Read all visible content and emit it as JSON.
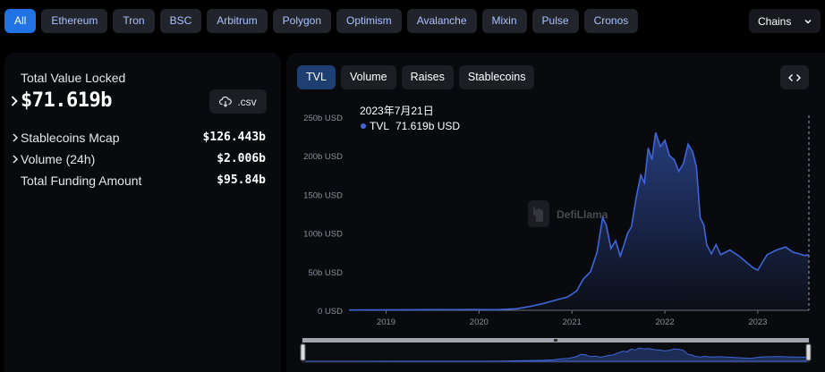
{
  "chains": {
    "items": [
      "All",
      "Ethereum",
      "Tron",
      "BSC",
      "Arbitrum",
      "Polygon",
      "Optimism",
      "Avalanche",
      "Mixin",
      "Pulse",
      "Cronos"
    ],
    "active_index": 0,
    "dropdown_label": "Chains"
  },
  "summary": {
    "tvl_label": "Total Value Locked",
    "tvl_value": "$71.619b",
    "csv_label": ".csv",
    "stats": [
      {
        "label": "Stablecoins Mcap",
        "value": "$126.443b",
        "expandable": true
      },
      {
        "label": "Volume (24h)",
        "value": "$2.006b",
        "expandable": true
      },
      {
        "label": "Total Funding Amount",
        "value": "$95.84b",
        "expandable": false
      }
    ]
  },
  "chart_tabs": {
    "items": [
      "TVL",
      "Volume",
      "Raises",
      "Stablecoins"
    ],
    "active_index": 0
  },
  "tooltip": {
    "date": "2023年7月21日",
    "series": "TVL",
    "value": "71.619b USD"
  },
  "watermark": "DefiLlama",
  "colors": {
    "accent": "#2172e5",
    "line": "#3e66d8",
    "chip_text": "#a9c1ff"
  },
  "icons": {
    "csv": "download-cloud-icon",
    "embed": "code-icon",
    "dropdown": "chevron-down-icon"
  },
  "chart_data": {
    "type": "area",
    "series": [
      {
        "name": "TVL"
      }
    ],
    "x_start": 2018.6,
    "x_end": 2023.55,
    "x_ticks": [
      2019,
      2020,
      2021,
      2022,
      2023
    ],
    "xticklabels": [
      "2019",
      "2020",
      "2021",
      "2022",
      "2023"
    ],
    "yticks": [
      0,
      50,
      100,
      150,
      200,
      250
    ],
    "yticklabels": [
      "0 USD",
      "50b USD",
      "100b USD",
      "150b USD",
      "200b USD",
      "250b USD"
    ],
    "ylim": [
      0,
      250
    ],
    "grid": false,
    "points": [
      [
        2018.6,
        0.3
      ],
      [
        2019.0,
        0.5
      ],
      [
        2019.5,
        0.8
      ],
      [
        2019.9,
        0.9
      ],
      [
        2020.2,
        0.8
      ],
      [
        2020.4,
        2
      ],
      [
        2020.55,
        5
      ],
      [
        2020.7,
        9
      ],
      [
        2020.85,
        14
      ],
      [
        2020.95,
        17
      ],
      [
        2021.05,
        25
      ],
      [
        2021.12,
        40
      ],
      [
        2021.2,
        50
      ],
      [
        2021.27,
        75
      ],
      [
        2021.33,
        120
      ],
      [
        2021.37,
        110
      ],
      [
        2021.42,
        80
      ],
      [
        2021.47,
        90
      ],
      [
        2021.52,
        70
      ],
      [
        2021.56,
        85
      ],
      [
        2021.6,
        100
      ],
      [
        2021.64,
        108
      ],
      [
        2021.69,
        145
      ],
      [
        2021.74,
        175
      ],
      [
        2021.78,
        165
      ],
      [
        2021.82,
        210
      ],
      [
        2021.86,
        195
      ],
      [
        2021.9,
        230
      ],
      [
        2021.95,
        212
      ],
      [
        2022.0,
        220
      ],
      [
        2022.05,
        200
      ],
      [
        2022.1,
        195
      ],
      [
        2022.15,
        180
      ],
      [
        2022.2,
        190
      ],
      [
        2022.25,
        215
      ],
      [
        2022.3,
        205
      ],
      [
        2022.34,
        185
      ],
      [
        2022.38,
        120
      ],
      [
        2022.42,
        110
      ],
      [
        2022.45,
        85
      ],
      [
        2022.5,
        73
      ],
      [
        2022.55,
        85
      ],
      [
        2022.6,
        72
      ],
      [
        2022.7,
        78
      ],
      [
        2022.8,
        70
      ],
      [
        2022.9,
        60
      ],
      [
        2022.95,
        55
      ],
      [
        2023.0,
        52
      ],
      [
        2023.05,
        62
      ],
      [
        2023.1,
        72
      ],
      [
        2023.2,
        78
      ],
      [
        2023.3,
        82
      ],
      [
        2023.38,
        75
      ],
      [
        2023.45,
        73
      ],
      [
        2023.5,
        71
      ],
      [
        2023.55,
        71.6
      ]
    ],
    "scroller_range": [
      0,
      1
    ]
  }
}
